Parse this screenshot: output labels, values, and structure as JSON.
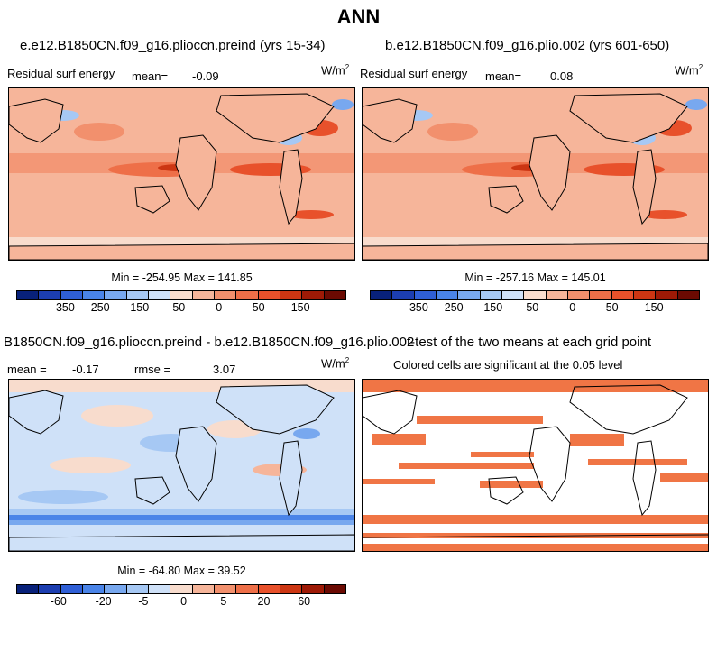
{
  "main_title": "ANN",
  "colors": {
    "palette": [
      "#08217a",
      "#1c3eb0",
      "#2f5fd6",
      "#4a84e8",
      "#78a8ef",
      "#a6c8f4",
      "#cfe1f8",
      "#f8dccd",
      "#f6b59a",
      "#f2906d",
      "#ee6f48",
      "#e8512b",
      "#cc3613",
      "#9e1a06",
      "#6b0a02"
    ],
    "land_outline": "#000000",
    "sig_cell": "#f07545"
  },
  "panels": {
    "p1": {
      "title": "e.e12.B1850CN.f09_g16.plioccn.preind (yrs 15-34)",
      "left_label": "Residual surf energy",
      "mean_label": "mean=",
      "mean_value": "-0.09",
      "units": "W/m",
      "units_exp": "2",
      "minmax": "Min = -254.95 Max = 141.85"
    },
    "p2": {
      "title": "b.e12.B1850CN.f09_g16.plio.002 (yrs 601-650)",
      "left_label": "Residual surf energy",
      "mean_label": "mean=",
      "mean_value": "0.08",
      "units": "W/m",
      "units_exp": "2",
      "minmax": "Min = -257.16 Max = 145.01"
    },
    "p3": {
      "title": "B1850CN.f09_g16.plioccn.preind - b.e12.B1850CN.f09_g16.plio.002",
      "mean_text": "mean =",
      "mean_value": "-0.17",
      "rmse_text": "rmse =",
      "rmse_value": "3.07",
      "units": "W/m",
      "units_exp": "2",
      "minmax": "Min = -64.80 Max = 39.52"
    },
    "p4": {
      "title": "t-test of the two means at each grid point",
      "subtitle": "Colored cells are significant at the 0.05 level"
    }
  },
  "colorbars": {
    "abs": {
      "ticks": [
        "-350",
        "-250",
        "-150",
        "-50",
        "0",
        "50",
        "150"
      ]
    },
    "diff": {
      "ticks": [
        "-60",
        "-20",
        "-5",
        "0",
        "5",
        "20",
        "60"
      ]
    }
  },
  "chart_data": [
    {
      "type": "heatmap",
      "title": "e.e12.B1850CN.f09_g16.plioccn.preind (yrs 15-34)",
      "variable": "Residual surf energy",
      "units": "W/m2",
      "mean": -0.09,
      "min": -254.95,
      "max": 141.85,
      "colorbar_ticks": [
        -350,
        -250,
        -150,
        -50,
        0,
        50,
        150
      ]
    },
    {
      "type": "heatmap",
      "title": "b.e12.B1850CN.f09_g16.plio.002 (yrs 601-650)",
      "variable": "Residual surf energy",
      "units": "W/m2",
      "mean": 0.08,
      "min": -257.16,
      "max": 145.01,
      "colorbar_ticks": [
        -350,
        -250,
        -150,
        -50,
        0,
        50,
        150
      ]
    },
    {
      "type": "heatmap",
      "title": "B1850CN.f09_g16.plioccn.preind - b.e12.B1850CN.f09_g16.plio.002",
      "units": "W/m2",
      "mean": -0.17,
      "rmse": 3.07,
      "min": -64.8,
      "max": 39.52,
      "colorbar_ticks": [
        -60,
        -20,
        -5,
        0,
        5,
        20,
        60
      ]
    },
    {
      "type": "heatmap",
      "title": "t-test of the two means at each grid point",
      "note": "Colored cells are significant at the 0.05 level"
    }
  ]
}
